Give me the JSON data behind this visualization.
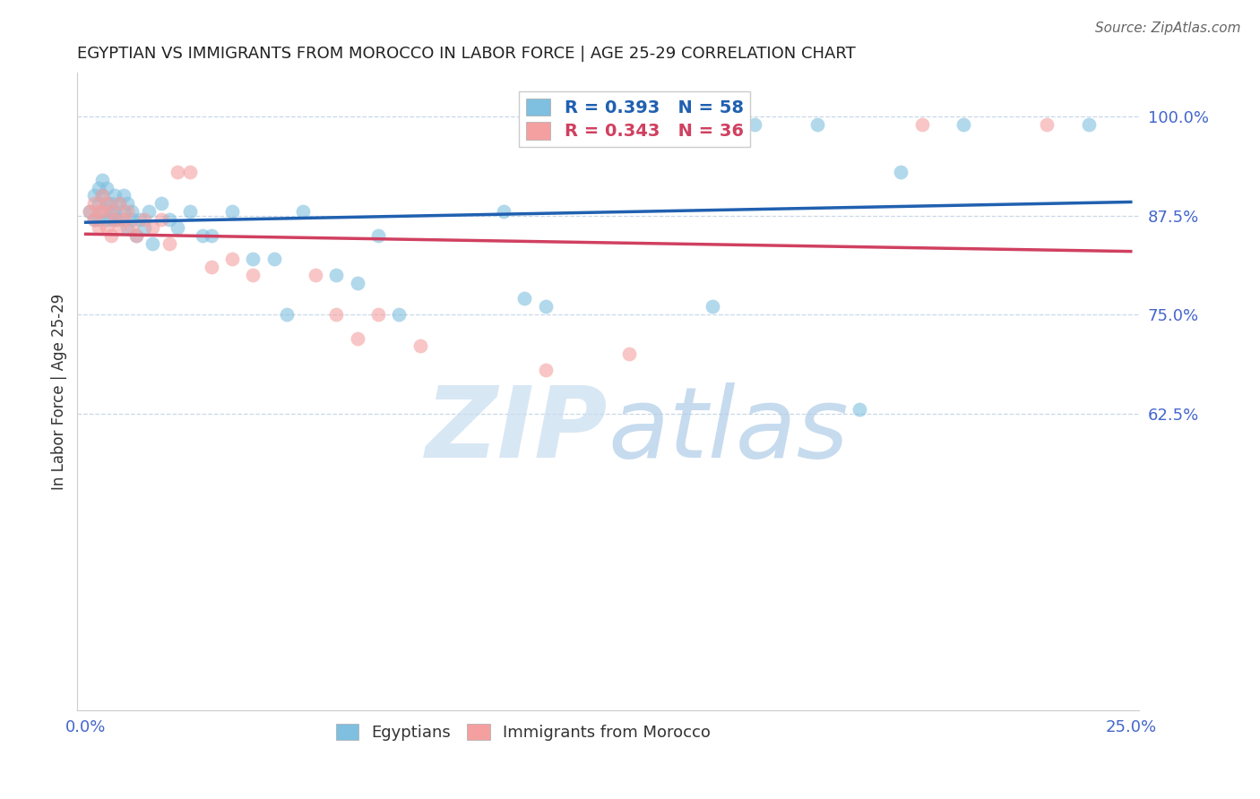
{
  "title": "EGYPTIAN VS IMMIGRANTS FROM MOROCCO IN LABOR FORCE | AGE 25-29 CORRELATION CHART",
  "source": "Source: ZipAtlas.com",
  "ylabel": "In Labor Force | Age 25-29",
  "xlim": [
    -0.002,
    0.252
  ],
  "ylim": [
    0.25,
    1.055
  ],
  "xtick_positions": [
    0.0,
    0.05,
    0.1,
    0.15,
    0.2,
    0.25
  ],
  "xticklabels": [
    "0.0%",
    "",
    "",
    "",
    "",
    "25.0%"
  ],
  "yticks_right": [
    1.0,
    0.875,
    0.75,
    0.625
  ],
  "ytick_right_labels": [
    "100.0%",
    "87.5%",
    "75.0%",
    "62.5%"
  ],
  "background_color": "#ffffff",
  "blue_color": "#7fbfdf",
  "pink_color": "#f4a0a0",
  "blue_line_color": "#2060b0",
  "pink_line_color": "#d04060",
  "legend_blue_r": 0.393,
  "legend_blue_n": 58,
  "legend_pink_r": 0.343,
  "legend_pink_n": 36,
  "blue_r_color": "#2060b0",
  "pink_r_color": "#d04060",
  "grid_color": "#c8d8e8",
  "tick_color": "#4466cc",
  "title_color": "#222222",
  "source_color": "#666666",
  "ylabel_color": "#333333",
  "blue_points_x": [
    0.001,
    0.002,
    0.002,
    0.003,
    0.003,
    0.003,
    0.004,
    0.004,
    0.004,
    0.005,
    0.005,
    0.005,
    0.006,
    0.006,
    0.006,
    0.007,
    0.007,
    0.007,
    0.008,
    0.008,
    0.009,
    0.009,
    0.01,
    0.01,
    0.011,
    0.011,
    0.012,
    0.013,
    0.014,
    0.015,
    0.016,
    0.018,
    0.02,
    0.022,
    0.025,
    0.028,
    0.03,
    0.035,
    0.04,
    0.045,
    0.048,
    0.052,
    0.06,
    0.065,
    0.07,
    0.075,
    0.1,
    0.105,
    0.11,
    0.125,
    0.135,
    0.15,
    0.16,
    0.175,
    0.185,
    0.195,
    0.21,
    0.24
  ],
  "blue_points_y": [
    0.88,
    0.87,
    0.9,
    0.87,
    0.89,
    0.91,
    0.88,
    0.9,
    0.92,
    0.87,
    0.89,
    0.91,
    0.87,
    0.89,
    0.88,
    0.87,
    0.9,
    0.88,
    0.87,
    0.89,
    0.88,
    0.9,
    0.86,
    0.89,
    0.87,
    0.88,
    0.85,
    0.87,
    0.86,
    0.88,
    0.84,
    0.89,
    0.87,
    0.86,
    0.88,
    0.85,
    0.85,
    0.88,
    0.82,
    0.82,
    0.75,
    0.88,
    0.8,
    0.79,
    0.85,
    0.75,
    0.88,
    0.77,
    0.76,
    0.99,
    0.99,
    0.76,
    0.99,
    0.99,
    0.63,
    0.93,
    0.99,
    0.99
  ],
  "pink_points_x": [
    0.001,
    0.002,
    0.002,
    0.003,
    0.003,
    0.004,
    0.004,
    0.005,
    0.005,
    0.006,
    0.006,
    0.007,
    0.008,
    0.008,
    0.009,
    0.01,
    0.011,
    0.012,
    0.014,
    0.016,
    0.018,
    0.02,
    0.022,
    0.025,
    0.03,
    0.035,
    0.04,
    0.055,
    0.06,
    0.065,
    0.07,
    0.08,
    0.11,
    0.13,
    0.2,
    0.23
  ],
  "pink_points_y": [
    0.88,
    0.87,
    0.89,
    0.86,
    0.88,
    0.88,
    0.9,
    0.86,
    0.89,
    0.85,
    0.88,
    0.87,
    0.86,
    0.89,
    0.87,
    0.88,
    0.86,
    0.85,
    0.87,
    0.86,
    0.87,
    0.84,
    0.93,
    0.93,
    0.81,
    0.82,
    0.8,
    0.8,
    0.75,
    0.72,
    0.75,
    0.71,
    0.68,
    0.7,
    0.99,
    0.99
  ],
  "watermark_zip_color": "#c8ddf0",
  "watermark_atlas_color": "#b0cce8"
}
